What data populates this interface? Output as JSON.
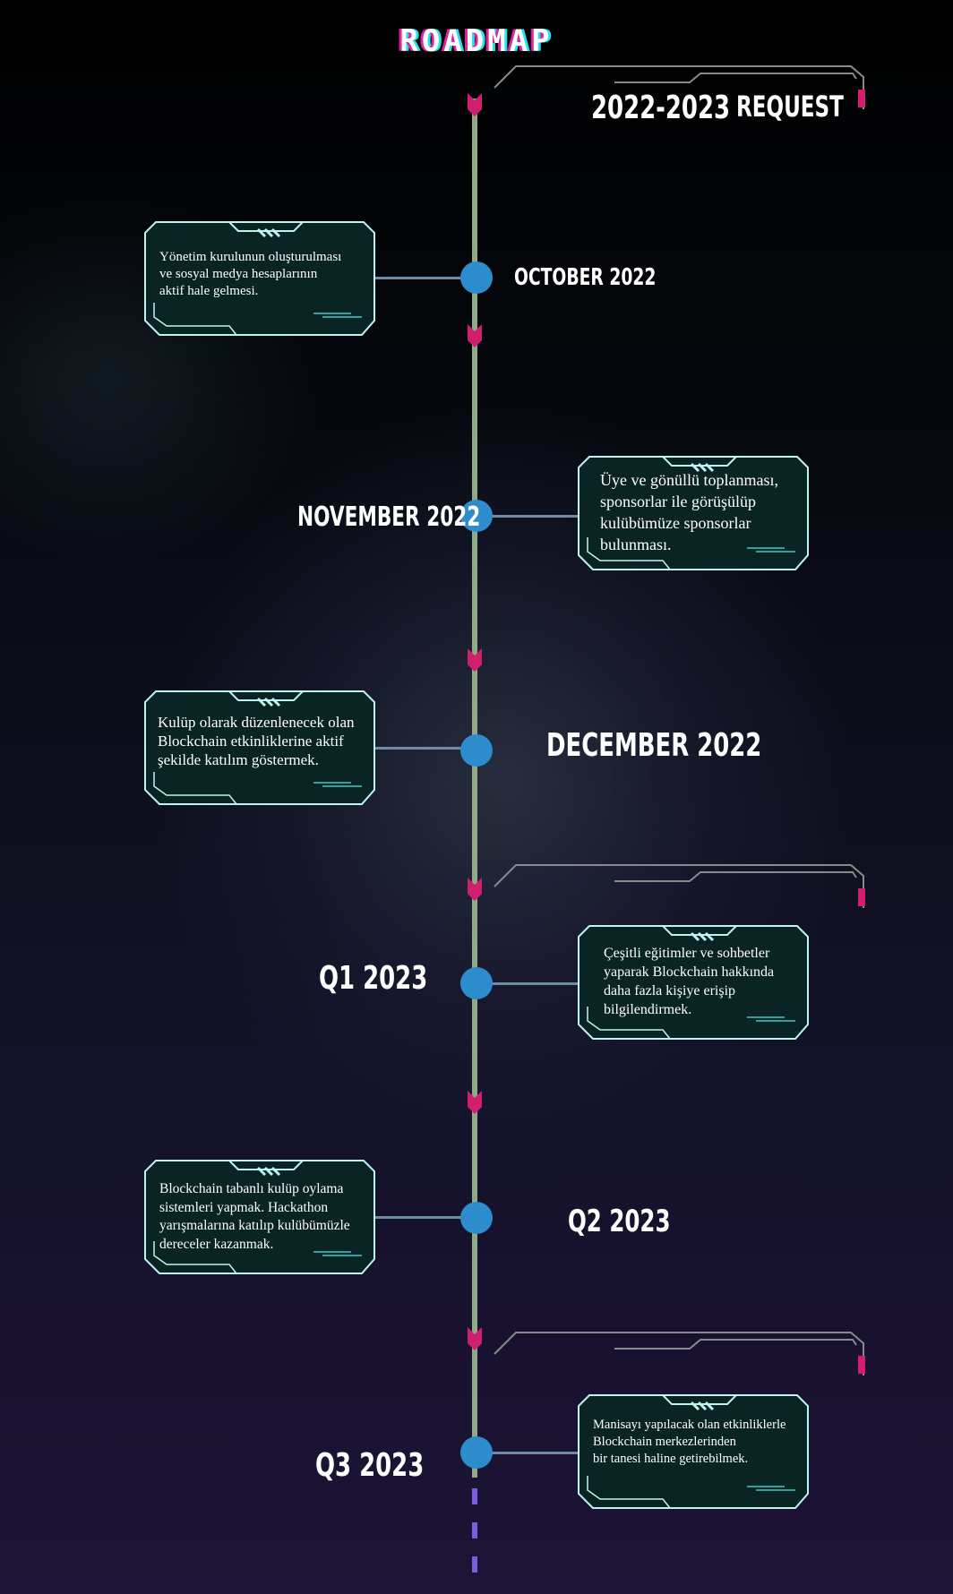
{
  "title": "ROADMAP",
  "header": {
    "year": "2022-2023",
    "label": "REQUEST"
  },
  "milestones": [
    {
      "date": "OCTOBER 2022",
      "text": "Yönetim kurulunun oluşturulması\nve sosyal medya hesaplarının\n aktif hale gelmesi."
    },
    {
      "date": "NOVEMBER 2022",
      "text": "Üye ve gönüllü toplanması,\nsponsorlar ile görüşülüp\nkulübümüze sponsorlar\nbulunması."
    },
    {
      "date": "DECEMBER 2022",
      "text": "Kulüp olarak düzenlenecek olan\nBlockchain etkinliklerine aktif\nşekilde katılım göstermek."
    },
    {
      "date": "Q1 2023",
      "text": "Çeşitli eğitimler ve sohbetler\nyaparak Blockchain hakkında\ndaha fazla kişiye erişip\nbilgilendirmek."
    },
    {
      "date": "Q2 2023",
      "text": "Blockchain tabanlı kulüp oylama\nsistemleri yapmak. Hackathon\nyarışmalarına katılıp kulübümüzle\ndereceler kazanmak."
    },
    {
      "date": "Q3 2023",
      "text": "Manisayı yapılacak olan etkinliklerle\nBlockchain merkezlerinden\nbir tanesi haline getirebilmek."
    }
  ],
  "colors": {
    "axis": "#8faa86",
    "dot": "#2c8ccc",
    "chevron": "#d01f6e",
    "card_border": "#bff4f2",
    "card_fill": "#0a2424",
    "dash": "#7b5ce0"
  }
}
